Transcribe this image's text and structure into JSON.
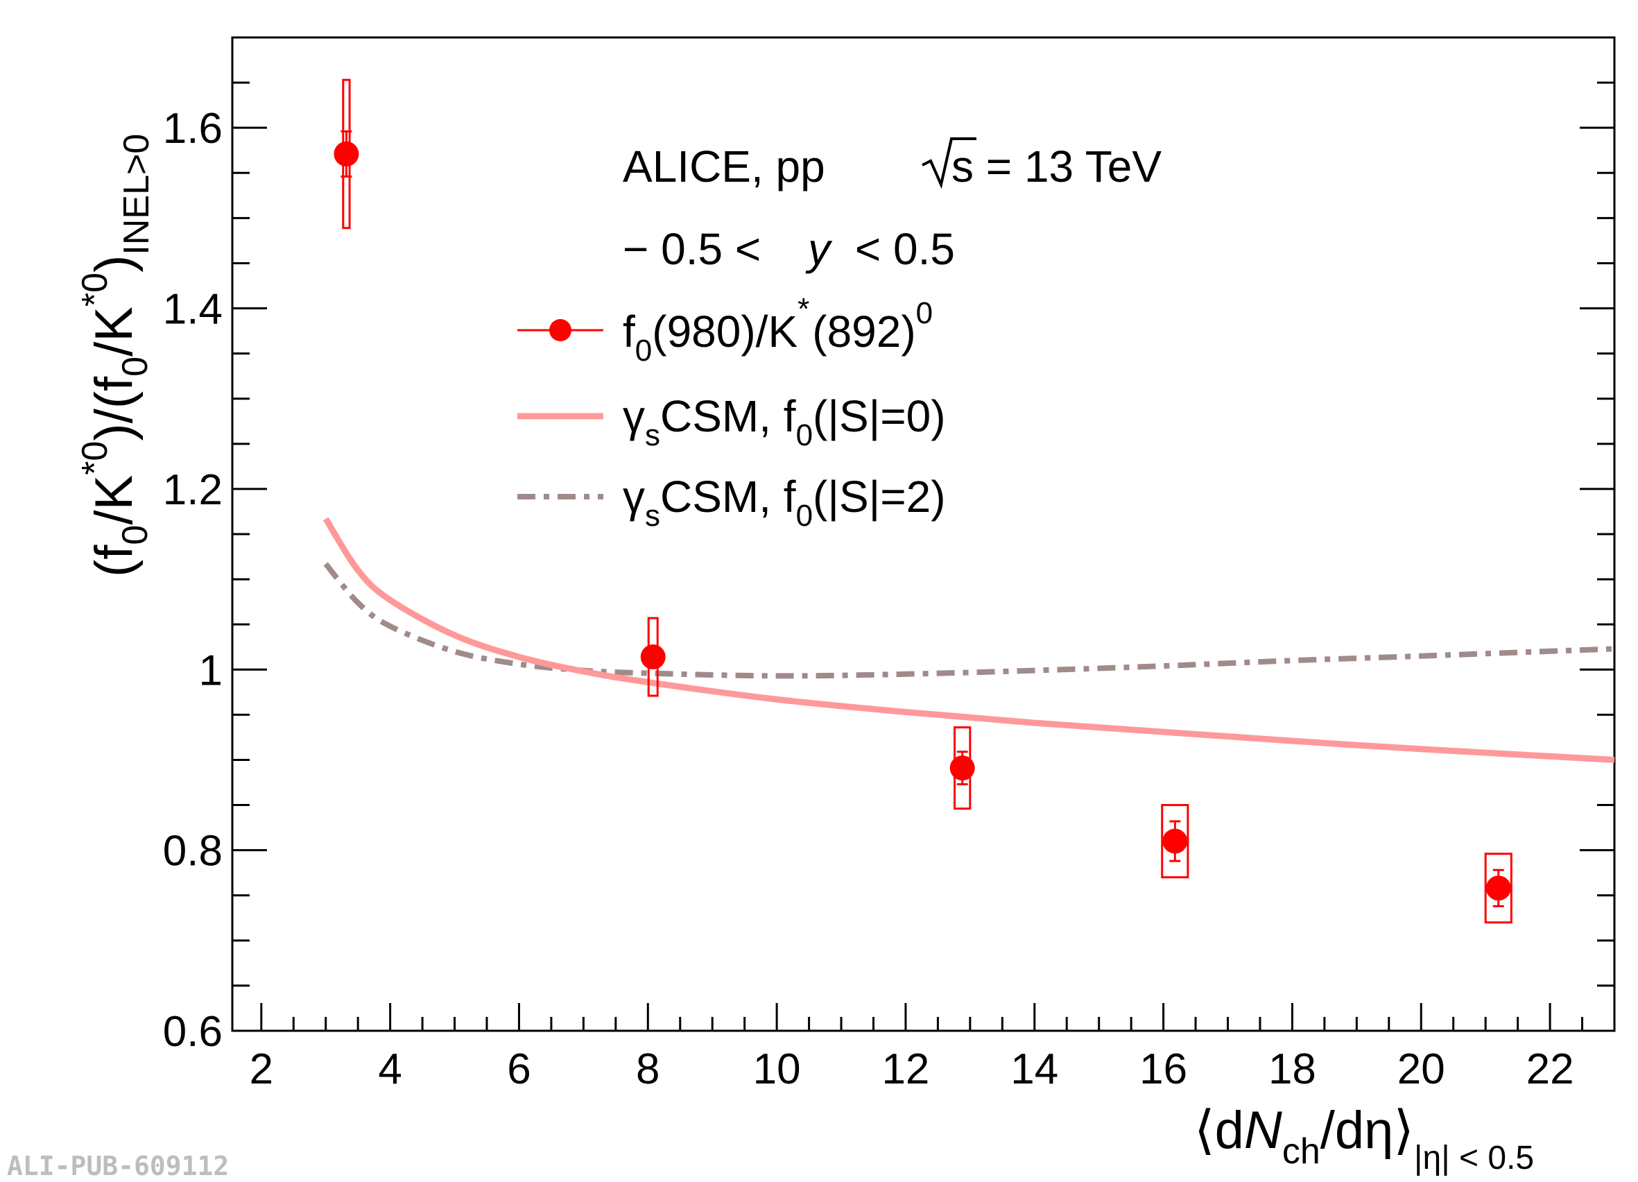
{
  "chart_data": {
    "type": "scatter",
    "watermark": "ALI-PUB-609112",
    "xlim": [
      1.55,
      23.0
    ],
    "ylim": [
      0.6,
      1.7
    ],
    "x_ticks": [
      2,
      4,
      6,
      8,
      10,
      12,
      14,
      16,
      18,
      20,
      22
    ],
    "x_tick_labels": [
      "2",
      "4",
      "6",
      "8",
      "10",
      "12",
      "14",
      "16",
      "18",
      "20",
      "22"
    ],
    "y_ticks": [
      0.6,
      0.8,
      1.0,
      1.2,
      1.4,
      1.6
    ],
    "y_tick_labels": [
      "0.6",
      "0.8",
      "1",
      "1.2",
      "1.4",
      "1.6"
    ],
    "xlabel": {
      "open": "⟨d",
      "N": "N",
      "ch": "ch",
      "rest": "/dη",
      "close": "⟩",
      "sub": "|η| < 0.5"
    },
    "ylabel": {
      "p1": "(f",
      "s1": "0",
      "p2": "/K",
      "u1": "*0",
      "p3": ")/(f",
      "s2": "0",
      "p4": "/K",
      "u2": "*0",
      "p5": ")",
      "s3": "INEL>0"
    },
    "annotations": {
      "line1_a": "ALICE, pp",
      "line1_b": "s = 13 TeV",
      "line2_a": "− 0.5 <",
      "line2_y": "y",
      "line2_b": "< 0.5"
    },
    "legend": {
      "placement": "top-center",
      "data": {
        "p1": "f",
        "s1": "0",
        "p2": "(980)/K",
        "u1": "*",
        "p3": "(892)",
        "u2": "0"
      },
      "model1": {
        "p1": "γ",
        "s1": "s",
        "p2": "CSM, f",
        "s2": "0",
        "p3": "(|S|=0)"
      },
      "model2": {
        "p1": "γ",
        "s1": "s",
        "p2": "CSM, f",
        "s2": "0",
        "p3": "(|S|=2)"
      }
    },
    "colors": {
      "data": "#ff0000",
      "model1": "#ff9999",
      "model2": "#a08a8a"
    },
    "series": [
      {
        "name": "f0(980)/K*(892)0",
        "kind": "points",
        "x": [
          3.32,
          8.08,
          12.88,
          16.18,
          21.2
        ],
        "y": [
          1.571,
          1.014,
          0.891,
          0.81,
          0.758
        ],
        "stat_err": [
          0.025,
          0.0,
          0.018,
          0.022,
          0.02
        ],
        "sys_err": [
          0.082,
          0.043,
          0.045,
          0.04,
          0.038
        ],
        "sys_box_halfwidth": [
          0.05,
          0.07,
          0.12,
          0.2,
          0.2
        ]
      },
      {
        "name": "γsCSM, f0(|S|=0)",
        "kind": "line",
        "style": "solid",
        "x": [
          3.0,
          3.5,
          4.0,
          5.0,
          6.0,
          7.0,
          8.0,
          10.0,
          12.0,
          14.0,
          16.0,
          18.0,
          20.0,
          23.0
        ],
        "y": [
          1.167,
          1.11,
          1.077,
          1.038,
          1.014,
          0.998,
          0.986,
          0.967,
          0.953,
          0.941,
          0.931,
          0.921,
          0.912,
          0.9
        ]
      },
      {
        "name": "γsCSM, f0(|S|=2)",
        "kind": "line",
        "style": "dash-dot",
        "x": [
          3.0,
          3.5,
          4.0,
          5.0,
          6.0,
          7.0,
          8.0,
          10.0,
          12.0,
          14.0,
          16.0,
          18.0,
          20.0,
          23.0
        ],
        "y": [
          1.117,
          1.074,
          1.048,
          1.02,
          1.006,
          0.999,
          0.996,
          0.993,
          0.995,
          0.999,
          1.004,
          1.01,
          1.015,
          1.023
        ]
      }
    ]
  }
}
